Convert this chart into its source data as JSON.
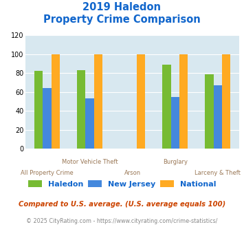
{
  "title_line1": "2019 Haledon",
  "title_line2": "Property Crime Comparison",
  "categories": [
    "All Property Crime",
    "Motor Vehicle Theft",
    "Arson",
    "Burglary",
    "Larceny & Theft"
  ],
  "xlabel_row1": [
    "",
    "Motor Vehicle Theft",
    "",
    "Burglary",
    ""
  ],
  "xlabel_row2": [
    "All Property Crime",
    "",
    "Arson",
    "",
    "Larceny & Theft"
  ],
  "series": {
    "Haledon": [
      82,
      83,
      0,
      89,
      79
    ],
    "New Jersey": [
      64,
      53,
      0,
      55,
      67
    ],
    "National": [
      100,
      100,
      100,
      100,
      100
    ]
  },
  "colors": {
    "Haledon": "#77bb33",
    "New Jersey": "#4488dd",
    "National": "#ffaa22"
  },
  "ylim": [
    0,
    120
  ],
  "yticks": [
    0,
    20,
    40,
    60,
    80,
    100,
    120
  ],
  "background_color": "#d8e8f0",
  "title_color": "#1166cc",
  "footer_text": "Compared to U.S. average. (U.S. average equals 100)",
  "credit_text": "© 2025 CityRating.com - https://www.cityrating.com/crime-statistics/",
  "footer_color": "#cc4400",
  "credit_color": "#888888",
  "label_color": "#997755",
  "grid_color": "#ffffff",
  "bar_width": 0.2
}
